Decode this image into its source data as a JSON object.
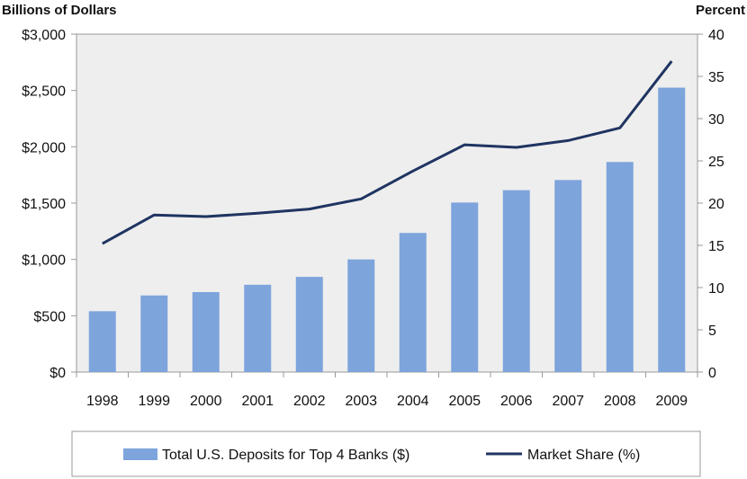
{
  "chart_data": {
    "type": "bar",
    "categories": [
      "1998",
      "1999",
      "2000",
      "2001",
      "2002",
      "2003",
      "2004",
      "2005",
      "2006",
      "2007",
      "2008",
      "2009"
    ],
    "series": [
      {
        "name": "Total U.S. Deposits for Top 4 Banks ($)",
        "type": "bar",
        "axis": "left",
        "values": [
          540,
          680,
          710,
          775,
          845,
          1000,
          1235,
          1505,
          1615,
          1705,
          1865,
          2525
        ]
      },
      {
        "name": "Market Share (%)",
        "type": "line",
        "axis": "right",
        "values": [
          15.2,
          18.6,
          18.4,
          18.8,
          19.3,
          20.5,
          23.8,
          26.9,
          26.6,
          27.4,
          28.9,
          36.8
        ]
      }
    ],
    "ylabel": "Billions of Dollars",
    "y2label": "Percent",
    "ylim": [
      0,
      3000
    ],
    "y2lim": [
      0,
      40
    ],
    "yticks": [
      "$0",
      "$500",
      "$1,000",
      "$1,500",
      "$2,000",
      "$2,500",
      "$3,000"
    ],
    "y2ticks": [
      "0",
      "5",
      "10",
      "15",
      "20",
      "25",
      "30",
      "35",
      "40"
    ],
    "grid": false,
    "legend_position": "bottom",
    "colors": {
      "bar": "#7ea4dc",
      "line": "#1f3461",
      "plot_bg": "#eeeeee",
      "axis": "#999999"
    }
  }
}
